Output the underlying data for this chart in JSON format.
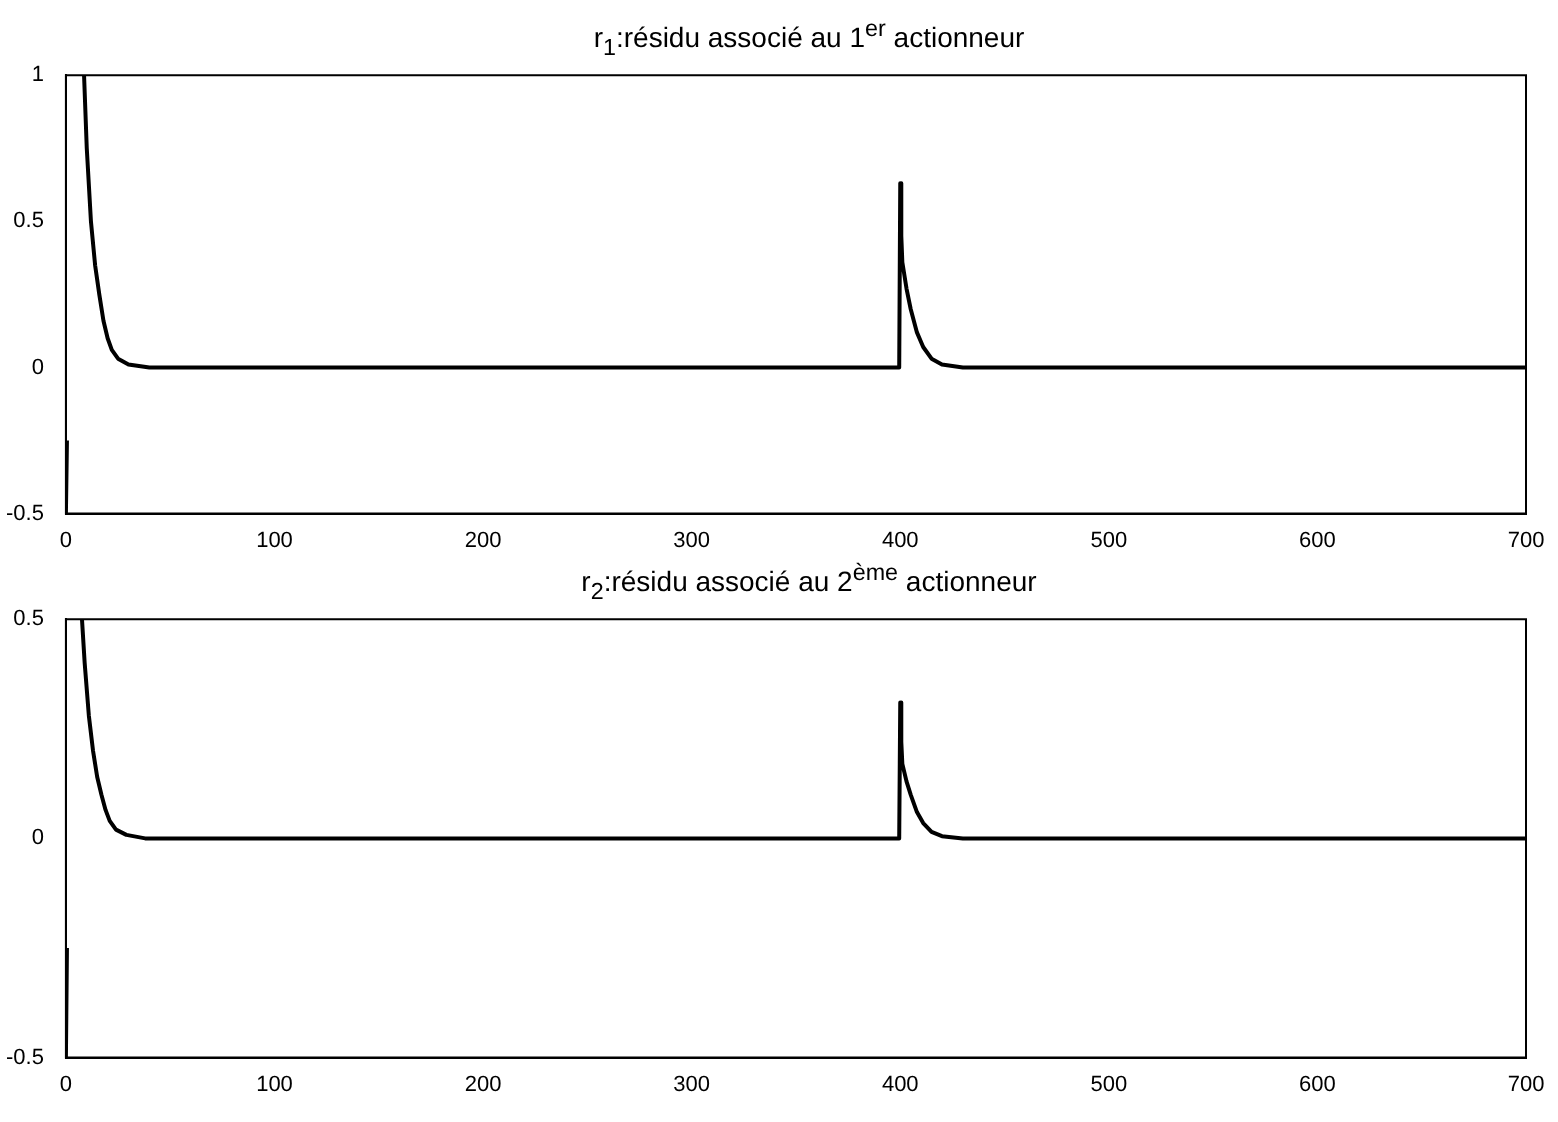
{
  "chart_data": [
    {
      "type": "line",
      "title": "r$_{1}$:résidu associé au 1$^{er}$ actionneur",
      "xlim": [
        0,
        700
      ],
      "xticks": [
        0,
        100,
        200,
        300,
        400,
        500,
        600,
        700
      ],
      "ylim": [
        -0.5,
        1
      ],
      "yticks": [
        -0.5,
        0,
        0.5,
        1
      ],
      "grid": false,
      "legend": false,
      "marker": "none",
      "line_style": "solid",
      "series": [
        {
          "color": "#000000",
          "x": [
            0,
            0.5,
            4,
            8.7,
            10,
            12,
            14,
            16,
            18,
            20,
            22,
            25,
            30,
            40,
            100,
            200,
            300,
            399.5,
            400,
            400.5,
            401,
            403,
            405,
            408,
            411,
            415,
            420,
            430,
            500,
            600,
            700
          ],
          "values": [
            -0.5,
            -0.25,
            null,
            1,
            0.75,
            0.5,
            0.35,
            0.25,
            0.16,
            0.1,
            0.06,
            0.03,
            0.01,
            0,
            0,
            0,
            0,
            0,
            0.63,
            0.45,
            0.36,
            0.27,
            0.2,
            0.12,
            0.07,
            0.03,
            0.01,
            0,
            0,
            0,
            0
          ]
        }
      ]
    },
    {
      "type": "line",
      "title": "r$_{2}$:résidu associé au 2$^{ème}$ actionneur",
      "xlim": [
        0,
        700
      ],
      "xticks": [
        0,
        100,
        200,
        300,
        400,
        500,
        600,
        700
      ],
      "ylim": [
        -0.5,
        0.5
      ],
      "yticks": [
        -0.5,
        0,
        0.5
      ],
      "grid": false,
      "legend": false,
      "marker": "none",
      "line_style": "solid",
      "series": [
        {
          "color": "#000000",
          "x": [
            0,
            0.5,
            4,
            7.7,
            9,
            11,
            13,
            15,
            17,
            19,
            21,
            24,
            29,
            38,
            100,
            200,
            300,
            399.5,
            400,
            400.5,
            401,
            403,
            405,
            408,
            411,
            415,
            420,
            430,
            500,
            600,
            700
          ],
          "values": [
            -0.5,
            -0.25,
            null,
            0.5,
            0.4,
            0.28,
            0.2,
            0.14,
            0.1,
            0.065,
            0.04,
            0.02,
            0.008,
            0,
            0,
            0,
            0,
            0,
            0.31,
            0.22,
            0.17,
            0.13,
            0.1,
            0.06,
            0.035,
            0.015,
            0.005,
            0,
            0,
            0,
            0
          ]
        }
      ]
    }
  ]
}
